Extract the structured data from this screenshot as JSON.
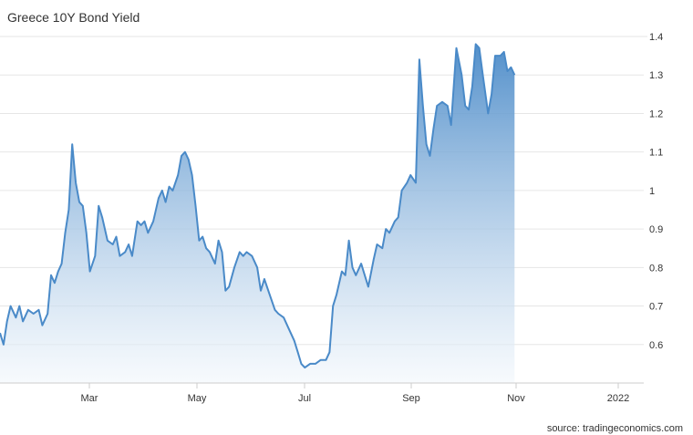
{
  "chart_data": {
    "type": "area",
    "title": "Greece 10Y Bond Yield",
    "source": "source: tradingeconomics.com",
    "xlabel": "",
    "ylabel": "",
    "ylim": [
      0.5,
      1.4
    ],
    "y_axis_position": "right",
    "grid": true,
    "x_tick_labels": [
      "Mar",
      "May",
      "Jul",
      "Sep",
      "Nov",
      "2022"
    ],
    "y_tick_values": [
      0.6,
      0.7,
      0.8,
      0.9,
      1.0,
      1.1,
      1.2,
      1.3,
      1.4
    ],
    "y_tick_labels": [
      "0.6",
      "0.7",
      "0.8",
      "0.9",
      "1",
      "1.1",
      "1.2",
      "1.3",
      "1.4"
    ],
    "x_start": "2021-01-15",
    "x_end": "2022-01-05",
    "line_color": "#4a8ac8",
    "fill_color_top": "#4a8ac8",
    "fill_color_bottom": "#f2f7fc",
    "series": [
      {
        "values": [
          [
            "2021-01-15",
            0.63
          ],
          [
            "2021-01-17",
            0.6
          ],
          [
            "2021-01-19",
            0.66
          ],
          [
            "2021-01-21",
            0.7
          ],
          [
            "2021-01-24",
            0.67
          ],
          [
            "2021-01-26",
            0.7
          ],
          [
            "2021-01-28",
            0.66
          ],
          [
            "2021-01-31",
            0.69
          ],
          [
            "2021-02-03",
            0.68
          ],
          [
            "2021-02-06",
            0.69
          ],
          [
            "2021-02-08",
            0.65
          ],
          [
            "2021-02-11",
            0.68
          ],
          [
            "2021-02-13",
            0.78
          ],
          [
            "2021-02-15",
            0.76
          ],
          [
            "2021-02-17",
            0.79
          ],
          [
            "2021-02-19",
            0.81
          ],
          [
            "2021-02-21",
            0.89
          ],
          [
            "2021-02-23",
            0.95
          ],
          [
            "2021-02-25",
            1.12
          ],
          [
            "2021-02-27",
            1.02
          ],
          [
            "2021-03-01",
            0.97
          ],
          [
            "2021-03-03",
            0.96
          ],
          [
            "2021-03-05",
            0.89
          ],
          [
            "2021-03-07",
            0.79
          ],
          [
            "2021-03-10",
            0.83
          ],
          [
            "2021-03-12",
            0.96
          ],
          [
            "2021-03-14",
            0.93
          ],
          [
            "2021-03-17",
            0.87
          ],
          [
            "2021-03-20",
            0.86
          ],
          [
            "2021-03-22",
            0.88
          ],
          [
            "2021-03-24",
            0.83
          ],
          [
            "2021-03-27",
            0.84
          ],
          [
            "2021-03-29",
            0.86
          ],
          [
            "2021-03-31",
            0.83
          ],
          [
            "2021-04-03",
            0.92
          ],
          [
            "2021-04-05",
            0.91
          ],
          [
            "2021-04-07",
            0.92
          ],
          [
            "2021-04-09",
            0.89
          ],
          [
            "2021-04-12",
            0.92
          ],
          [
            "2021-04-15",
            0.98
          ],
          [
            "2021-04-17",
            1.0
          ],
          [
            "2021-04-19",
            0.97
          ],
          [
            "2021-04-21",
            1.01
          ],
          [
            "2021-04-23",
            1.0
          ],
          [
            "2021-04-26",
            1.04
          ],
          [
            "2021-04-28",
            1.09
          ],
          [
            "2021-04-30",
            1.1
          ],
          [
            "2021-05-02",
            1.08
          ],
          [
            "2021-05-04",
            1.04
          ],
          [
            "2021-05-06",
            0.96
          ],
          [
            "2021-05-08",
            0.87
          ],
          [
            "2021-05-10",
            0.88
          ],
          [
            "2021-05-12",
            0.85
          ],
          [
            "2021-05-14",
            0.84
          ],
          [
            "2021-05-17",
            0.81
          ],
          [
            "2021-05-19",
            0.87
          ],
          [
            "2021-05-21",
            0.84
          ],
          [
            "2021-05-23",
            0.74
          ],
          [
            "2021-05-25",
            0.75
          ],
          [
            "2021-05-28",
            0.8
          ],
          [
            "2021-05-31",
            0.84
          ],
          [
            "2021-06-02",
            0.83
          ],
          [
            "2021-06-04",
            0.84
          ],
          [
            "2021-06-07",
            0.83
          ],
          [
            "2021-06-10",
            0.8
          ],
          [
            "2021-06-12",
            0.74
          ],
          [
            "2021-06-14",
            0.77
          ],
          [
            "2021-06-17",
            0.73
          ],
          [
            "2021-06-20",
            0.69
          ],
          [
            "2021-06-22",
            0.68
          ],
          [
            "2021-06-25",
            0.67
          ],
          [
            "2021-06-28",
            0.64
          ],
          [
            "2021-07-01",
            0.61
          ],
          [
            "2021-07-03",
            0.58
          ],
          [
            "2021-07-05",
            0.55
          ],
          [
            "2021-07-07",
            0.54
          ],
          [
            "2021-07-10",
            0.55
          ],
          [
            "2021-07-13",
            0.55
          ],
          [
            "2021-07-16",
            0.56
          ],
          [
            "2021-07-19",
            0.56
          ],
          [
            "2021-07-21",
            0.58
          ],
          [
            "2021-07-23",
            0.7
          ],
          [
            "2021-07-25",
            0.73
          ],
          [
            "2021-07-28",
            0.79
          ],
          [
            "2021-07-30",
            0.78
          ],
          [
            "2021-08-01",
            0.87
          ],
          [
            "2021-08-03",
            0.8
          ],
          [
            "2021-08-05",
            0.78
          ],
          [
            "2021-08-08",
            0.81
          ],
          [
            "2021-08-10",
            0.78
          ],
          [
            "2021-08-12",
            0.75
          ],
          [
            "2021-08-15",
            0.82
          ],
          [
            "2021-08-17",
            0.86
          ],
          [
            "2021-08-20",
            0.85
          ],
          [
            "2021-08-22",
            0.9
          ],
          [
            "2021-08-24",
            0.89
          ],
          [
            "2021-08-27",
            0.92
          ],
          [
            "2021-08-29",
            0.93
          ],
          [
            "2021-08-31",
            1.0
          ],
          [
            "2021-09-03",
            1.02
          ],
          [
            "2021-09-05",
            1.04
          ],
          [
            "2021-09-08",
            1.02
          ],
          [
            "2021-09-10",
            1.34
          ],
          [
            "2021-09-12",
            1.22
          ],
          [
            "2021-09-14",
            1.12
          ],
          [
            "2021-09-16",
            1.09
          ],
          [
            "2021-09-18",
            1.16
          ],
          [
            "2021-09-20",
            1.22
          ],
          [
            "2021-09-23",
            1.23
          ],
          [
            "2021-09-26",
            1.22
          ],
          [
            "2021-09-28",
            1.17
          ],
          [
            "2021-10-01",
            1.37
          ],
          [
            "2021-10-04",
            1.3
          ],
          [
            "2021-10-06",
            1.22
          ],
          [
            "2021-10-08",
            1.21
          ],
          [
            "2021-10-10",
            1.27
          ],
          [
            "2021-10-12",
            1.38
          ],
          [
            "2021-10-14",
            1.37
          ],
          [
            "2021-10-16",
            1.3
          ],
          [
            "2021-10-19",
            1.2
          ],
          [
            "2021-10-21",
            1.25
          ],
          [
            "2021-10-23",
            1.35
          ],
          [
            "2021-10-26",
            1.35
          ],
          [
            "2021-10-28",
            1.36
          ],
          [
            "2021-10-30",
            1.31
          ],
          [
            "2021-11-01",
            1.32
          ],
          [
            "2021-11-03",
            1.3
          ]
        ]
      }
    ]
  }
}
